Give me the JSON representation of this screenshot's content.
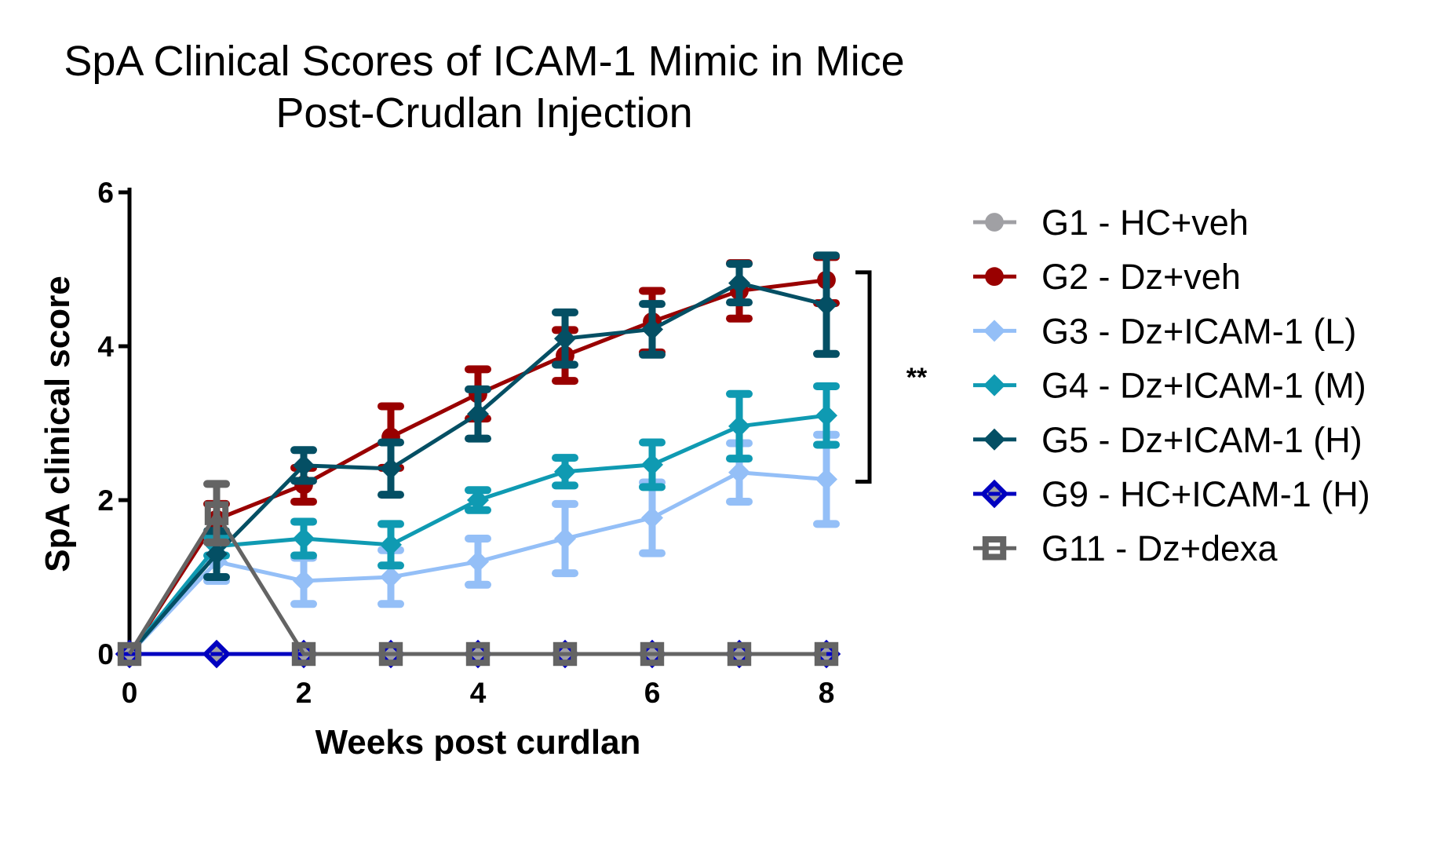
{
  "chart_data": {
    "type": "line",
    "title_lines": [
      "SpA Clinical Scores of ICAM-1 Mimic in Mice",
      "Post-Crudlan Injection"
    ],
    "xlabel": "Weeks post curdlan",
    "ylabel": "SpA clinical score",
    "x": [
      0,
      1,
      2,
      3,
      4,
      5,
      6,
      7,
      8
    ],
    "xlim": [
      0,
      8
    ],
    "ylim": [
      0,
      6
    ],
    "xticks": [
      0,
      2,
      4,
      6,
      8
    ],
    "yticks": [
      0,
      2,
      4,
      6
    ],
    "xtick_labels": [
      "0",
      "2",
      "4",
      "6",
      "8"
    ],
    "ytick_labels": [
      "0",
      "2",
      "4",
      "6"
    ],
    "grid": false,
    "legend_position": "right",
    "series": [
      {
        "name": "G1 - HC+veh",
        "color": "#A0A0A4",
        "marker": "circle",
        "values": [
          0,
          0,
          0,
          0,
          0,
          0,
          0,
          0,
          0
        ],
        "error": [
          0,
          0,
          0,
          0,
          0,
          0,
          0,
          0,
          0
        ]
      },
      {
        "name": "G2 - Dz+veh",
        "color": "#990000",
        "marker": "circle",
        "values": [
          0,
          1.75,
          2.2,
          2.82,
          3.38,
          3.88,
          4.32,
          4.72,
          4.86
        ],
        "error": [
          0,
          0.2,
          0.22,
          0.4,
          0.32,
          0.33,
          0.4,
          0.36,
          0.3
        ]
      },
      {
        "name": "G3 - Dz+ICAM-1 (L)",
        "color": "#94BFF7",
        "marker": "diamond",
        "values": [
          0,
          1.2,
          0.95,
          1.0,
          1.2,
          1.5,
          1.77,
          2.36,
          2.27
        ],
        "error": [
          0,
          0.25,
          0.3,
          0.35,
          0.3,
          0.45,
          0.46,
          0.38,
          0.58
        ]
      },
      {
        "name": "G4 - Dz+ICAM-1 (M)",
        "color": "#0F9AB2",
        "marker": "diamond",
        "values": [
          0,
          1.4,
          1.5,
          1.42,
          2.0,
          2.37,
          2.46,
          2.96,
          3.1
        ],
        "error": [
          0,
          0.12,
          0.22,
          0.27,
          0.13,
          0.18,
          0.29,
          0.42,
          0.38
        ]
      },
      {
        "name": "G5 - Dz+ICAM-1 (H)",
        "color": "#044F64",
        "marker": "diamond",
        "values": [
          0,
          1.3,
          2.45,
          2.41,
          3.12,
          4.1,
          4.22,
          4.82,
          4.54
        ],
        "error": [
          0,
          0.3,
          0.2,
          0.34,
          0.32,
          0.34,
          0.33,
          0.25,
          0.64
        ]
      },
      {
        "name": "G9 - HC+ICAM-1 (H)",
        "color": "#0000C0",
        "marker": "diamond-open",
        "values": [
          0,
          0,
          0,
          0,
          0,
          0,
          0,
          0,
          0
        ],
        "error": [
          0,
          0,
          0,
          0,
          0,
          0,
          0,
          0,
          0
        ]
      },
      {
        "name": "G11 - Dz+dexa",
        "color": "#646464",
        "marker": "square-open",
        "values": [
          0,
          1.83,
          0,
          0,
          0,
          0,
          0,
          0,
          0
        ],
        "error": [
          0,
          0.38,
          0,
          0,
          0,
          0,
          0,
          0,
          0
        ]
      }
    ],
    "annotations": [
      {
        "type": "bracket",
        "text": "**",
        "y_range": [
          2.24,
          4.96
        ],
        "position": "right of week 8"
      }
    ]
  }
}
